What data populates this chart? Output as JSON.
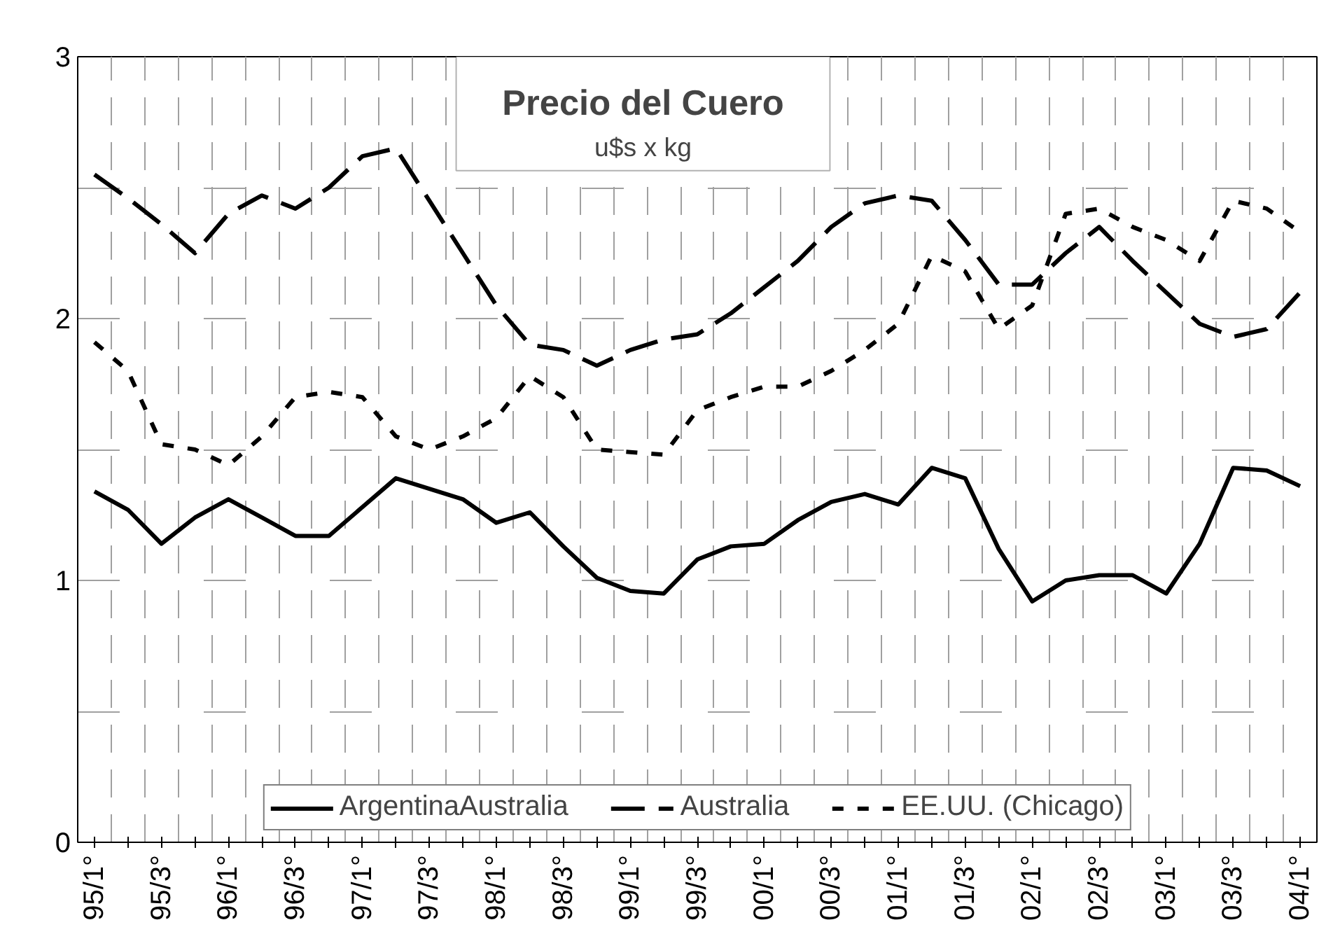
{
  "chart_data": {
    "type": "line",
    "title": "Precio del Cuero",
    "subtitle": "u$s x kg",
    "categories": [
      "95/1°",
      null,
      "95/3°",
      null,
      "96/1°",
      null,
      "96/3°",
      null,
      "97/1°",
      null,
      "97/3°",
      null,
      "98/1°",
      null,
      "98/3°",
      null,
      "99/1°",
      null,
      "99/3°",
      null,
      "00/1°",
      null,
      "00/3°",
      null,
      "01/1°",
      null,
      "01/3°",
      null,
      "02/1°",
      null,
      "02/3°",
      null,
      "03/1°",
      null,
      "03/3°",
      null,
      "04/1°"
    ],
    "series": [
      {
        "name": "ArgentinaAustralia",
        "color": "#000000",
        "line_style": "solid",
        "values": [
          1.34,
          1.27,
          1.14,
          1.24,
          1.31,
          1.24,
          1.17,
          1.17,
          1.28,
          1.39,
          1.35,
          1.31,
          1.22,
          1.26,
          1.13,
          1.01,
          0.96,
          0.95,
          1.08,
          1.13,
          1.14,
          1.23,
          1.3,
          1.33,
          1.29,
          1.43,
          1.39,
          1.12,
          0.92,
          1.0,
          1.02,
          1.02,
          0.95,
          1.14,
          1.43,
          1.42,
          1.36
        ]
      },
      {
        "name": "Australia",
        "color": "#000000",
        "line_style": "dashed",
        "values": [
          2.55,
          2.46,
          2.36,
          2.25,
          2.4,
          2.47,
          2.42,
          2.5,
          2.62,
          2.65,
          2.45,
          2.25,
          2.05,
          1.9,
          1.88,
          1.82,
          1.88,
          1.92,
          1.94,
          2.02,
          2.12,
          2.22,
          2.35,
          2.44,
          2.47,
          2.45,
          2.3,
          2.13,
          2.13,
          2.25,
          2.35,
          2.22,
          2.1,
          1.98,
          1.93,
          1.96,
          2.1
        ]
      },
      {
        "name": "EE.UU. (Chicago)",
        "color": "#000000",
        "line_style": "dotted",
        "values": [
          1.91,
          1.8,
          1.52,
          1.5,
          1.44,
          1.55,
          1.7,
          1.72,
          1.7,
          1.55,
          1.5,
          1.55,
          1.62,
          1.78,
          1.7,
          1.5,
          1.49,
          1.48,
          1.65,
          1.7,
          1.74,
          1.74,
          1.8,
          1.88,
          1.98,
          2.24,
          2.18,
          1.96,
          2.05,
          2.4,
          2.42,
          2.35,
          2.3,
          2.22,
          2.45,
          2.42,
          2.33
        ]
      }
    ],
    "ylim": [
      0,
      3
    ],
    "yticks": [
      0,
      {
        "value": 0.5,
        "label": null
      },
      1,
      {
        "value": 1.5,
        "label": null
      },
      2,
      {
        "value": 2.5,
        "label": null
      },
      3
    ],
    "grid": true,
    "legend": "bottom"
  }
}
